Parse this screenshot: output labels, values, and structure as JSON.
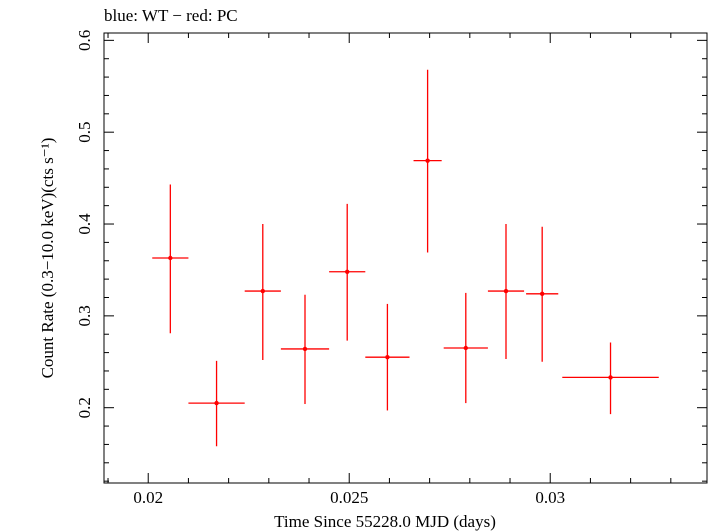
{
  "chart_data": {
    "type": "scatter",
    "title": "blue: WT − red: PC",
    "xlabel": "Time Since 55228.0 MJD (days)",
    "ylabel": "Count Rate (0.3−10.0 keV)(cts s⁻¹)",
    "xlim": [
      0.0189,
      0.0339
    ],
    "ylim": [
      0.118,
      0.608
    ],
    "x_ticks": [
      "0.02",
      "0.025",
      "0.03"
    ],
    "y_ticks": [
      "0.2",
      "0.3",
      "0.4",
      "0.5",
      "0.6"
    ],
    "grid": false,
    "series": [
      {
        "name": "PC",
        "color": "#ff0000",
        "points": [
          {
            "x": 0.02055,
            "xerr": 0.00045,
            "y": 0.363,
            "yerr_lo": 0.082,
            "yerr_hi": 0.08
          },
          {
            "x": 0.0217,
            "xerr": 0.0007,
            "y": 0.205,
            "yerr_lo": 0.047,
            "yerr_hi": 0.046
          },
          {
            "x": 0.02285,
            "xerr": 0.00045,
            "y": 0.327,
            "yerr_lo": 0.075,
            "yerr_hi": 0.073
          },
          {
            "x": 0.0239,
            "xerr": 0.0006,
            "y": 0.264,
            "yerr_lo": 0.06,
            "yerr_hi": 0.059
          },
          {
            "x": 0.02495,
            "xerr": 0.00045,
            "y": 0.348,
            "yerr_lo": 0.075,
            "yerr_hi": 0.074
          },
          {
            "x": 0.02595,
            "xerr": 0.00055,
            "y": 0.255,
            "yerr_lo": 0.058,
            "yerr_hi": 0.058
          },
          {
            "x": 0.02695,
            "xerr": 0.00035,
            "y": 0.469,
            "yerr_lo": 0.1,
            "yerr_hi": 0.099
          },
          {
            "x": 0.0279,
            "xerr": 0.00055,
            "y": 0.265,
            "yerr_lo": 0.06,
            "yerr_hi": 0.06
          },
          {
            "x": 0.0289,
            "xerr": 0.00045,
            "y": 0.327,
            "yerr_lo": 0.074,
            "yerr_hi": 0.073
          },
          {
            "x": 0.0298,
            "xerr": 0.0004,
            "y": 0.324,
            "yerr_lo": 0.074,
            "yerr_hi": 0.073
          },
          {
            "x": 0.0315,
            "xerr": 0.0012,
            "y": 0.233,
            "yerr_lo": 0.04,
            "yerr_hi": 0.038
          }
        ]
      }
    ]
  }
}
